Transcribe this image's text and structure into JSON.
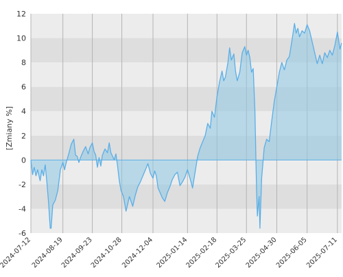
{
  "chart_data": {
    "type": "area",
    "ylabel": "[Zmiany %]",
    "ylim": [
      -6,
      12
    ],
    "yticks": [
      -6,
      -4,
      -2,
      0,
      2,
      4,
      6,
      8,
      10,
      12
    ],
    "xlim": [
      "2024-07-12",
      "2025-07-16"
    ],
    "xticks": [
      "2024-07-12",
      "2024-08-19",
      "2024-09-23",
      "2024-10-28",
      "2024-12-04",
      "2025-01-14",
      "2025-02-18",
      "2025-03-25",
      "2025-04-30",
      "2025-06-05",
      "2025-07-11"
    ],
    "grid": true,
    "colors": {
      "band_light": "#ececec",
      "band_dark": "#dedede",
      "vgrid": "#b4b4b4",
      "line": "#5aaee6",
      "area_positive": "#8ec8e6",
      "area_negative": "#8ecfe6",
      "zero_line": "#5aaee6"
    },
    "series": [
      {
        "points": [
          [
            "2024-07-12",
            0.0
          ],
          [
            "2024-07-14",
            -1.2
          ],
          [
            "2024-07-16",
            -0.6
          ],
          [
            "2024-07-18",
            -1.3
          ],
          [
            "2024-07-20",
            -0.8
          ],
          [
            "2024-07-23",
            -1.7
          ],
          [
            "2024-07-25",
            -0.8
          ],
          [
            "2024-07-27",
            -1.3
          ],
          [
            "2024-07-29",
            -0.4
          ],
          [
            "2024-07-31",
            -1.8
          ],
          [
            "2024-08-02",
            -3.5
          ],
          [
            "2024-08-04",
            -5.6
          ],
          [
            "2024-08-05",
            -5.6
          ],
          [
            "2024-08-07",
            -3.7
          ],
          [
            "2024-08-10",
            -3.3
          ],
          [
            "2024-08-13",
            -2.5
          ],
          [
            "2024-08-16",
            -0.8
          ],
          [
            "2024-08-19",
            -0.2
          ],
          [
            "2024-08-21",
            -0.8
          ],
          [
            "2024-08-23",
            -0.2
          ],
          [
            "2024-08-26",
            0.5
          ],
          [
            "2024-08-29",
            1.3
          ],
          [
            "2024-09-01",
            1.7
          ],
          [
            "2024-09-03",
            0.4
          ],
          [
            "2024-09-05",
            0.3
          ],
          [
            "2024-09-07",
            -0.2
          ],
          [
            "2024-09-09",
            0.2
          ],
          [
            "2024-09-12",
            0.7
          ],
          [
            "2024-09-15",
            1.1
          ],
          [
            "2024-09-18",
            0.5
          ],
          [
            "2024-09-20",
            1.0
          ],
          [
            "2024-09-23",
            1.4
          ],
          [
            "2024-09-25",
            0.7
          ],
          [
            "2024-09-27",
            0.4
          ],
          [
            "2024-09-29",
            -0.6
          ],
          [
            "2024-10-01",
            0.2
          ],
          [
            "2024-10-03",
            -0.5
          ],
          [
            "2024-10-05",
            0.4
          ],
          [
            "2024-10-08",
            0.9
          ],
          [
            "2024-10-11",
            0.6
          ],
          [
            "2024-10-13",
            1.4
          ],
          [
            "2024-10-15",
            0.6
          ],
          [
            "2024-10-17",
            0.3
          ],
          [
            "2024-10-19",
            0.0
          ],
          [
            "2024-10-21",
            0.5
          ],
          [
            "2024-10-23",
            -0.5
          ],
          [
            "2024-10-25",
            -1.7
          ],
          [
            "2024-10-27",
            -2.5
          ],
          [
            "2024-10-30",
            -3.0
          ],
          [
            "2024-11-02",
            -4.2
          ],
          [
            "2024-11-04",
            -3.6
          ],
          [
            "2024-11-06",
            -3.0
          ],
          [
            "2024-11-08",
            -3.4
          ],
          [
            "2024-11-10",
            -3.8
          ],
          [
            "2024-11-13",
            -2.9
          ],
          [
            "2024-11-16",
            -2.2
          ],
          [
            "2024-11-19",
            -1.8
          ],
          [
            "2024-11-22",
            -1.3
          ],
          [
            "2024-11-25",
            -0.8
          ],
          [
            "2024-11-28",
            -0.3
          ],
          [
            "2024-12-01",
            -1.1
          ],
          [
            "2024-12-04",
            -1.5
          ],
          [
            "2024-12-06",
            -0.9
          ],
          [
            "2024-12-08",
            -1.3
          ],
          [
            "2024-12-10",
            -2.3
          ],
          [
            "2024-12-12",
            -2.6
          ],
          [
            "2024-12-15",
            -3.1
          ],
          [
            "2024-12-18",
            -3.4
          ],
          [
            "2024-12-21",
            -2.7
          ],
          [
            "2024-12-24",
            -2.2
          ],
          [
            "2024-12-27",
            -1.6
          ],
          [
            "2024-12-30",
            -1.2
          ],
          [
            "2025-01-02",
            -1.0
          ],
          [
            "2025-01-05",
            -2.1
          ],
          [
            "2025-01-08",
            -1.8
          ],
          [
            "2025-01-11",
            -1.4
          ],
          [
            "2025-01-14",
            -0.8
          ],
          [
            "2025-01-17",
            -1.5
          ],
          [
            "2025-01-20",
            -2.3
          ],
          [
            "2025-01-23",
            -1.0
          ],
          [
            "2025-01-26",
            0.3
          ],
          [
            "2025-01-29",
            1.0
          ],
          [
            "2025-02-01",
            1.5
          ],
          [
            "2025-02-04",
            2.0
          ],
          [
            "2025-02-07",
            3.0
          ],
          [
            "2025-02-10",
            2.6
          ],
          [
            "2025-02-12",
            4.0
          ],
          [
            "2025-02-15",
            3.5
          ],
          [
            "2025-02-18",
            5.2
          ],
          [
            "2025-02-21",
            6.4
          ],
          [
            "2025-02-24",
            7.3
          ],
          [
            "2025-02-26",
            6.5
          ],
          [
            "2025-02-28",
            6.8
          ],
          [
            "2025-03-03",
            8.0
          ],
          [
            "2025-03-05",
            9.2
          ],
          [
            "2025-03-07",
            8.2
          ],
          [
            "2025-03-10",
            8.7
          ],
          [
            "2025-03-12",
            7.3
          ],
          [
            "2025-03-14",
            6.5
          ],
          [
            "2025-03-17",
            7.2
          ],
          [
            "2025-03-20",
            8.8
          ],
          [
            "2025-03-23",
            9.3
          ],
          [
            "2025-03-25",
            8.6
          ],
          [
            "2025-03-27",
            9.0
          ],
          [
            "2025-03-29",
            8.4
          ],
          [
            "2025-03-31",
            7.2
          ],
          [
            "2025-04-02",
            7.5
          ],
          [
            "2025-04-04",
            4.0
          ],
          [
            "2025-04-06",
            -2.5
          ],
          [
            "2025-04-07",
            -4.6
          ],
          [
            "2025-04-09",
            -3.0
          ],
          [
            "2025-04-10",
            -5.6
          ],
          [
            "2025-04-12",
            -1.5
          ],
          [
            "2025-04-15",
            1.0
          ],
          [
            "2025-04-18",
            1.7
          ],
          [
            "2025-04-21",
            1.5
          ],
          [
            "2025-04-24",
            3.2
          ],
          [
            "2025-04-27",
            4.8
          ],
          [
            "2025-04-30",
            6.0
          ],
          [
            "2025-05-03",
            7.2
          ],
          [
            "2025-05-06",
            8.0
          ],
          [
            "2025-05-09",
            7.4
          ],
          [
            "2025-05-12",
            8.2
          ],
          [
            "2025-05-15",
            8.5
          ],
          [
            "2025-05-18",
            9.8
          ],
          [
            "2025-05-21",
            11.2
          ],
          [
            "2025-05-23",
            10.4
          ],
          [
            "2025-05-25",
            10.8
          ],
          [
            "2025-05-27",
            10.1
          ],
          [
            "2025-05-30",
            10.6
          ],
          [
            "2025-06-02",
            10.4
          ],
          [
            "2025-06-05",
            11.1
          ],
          [
            "2025-06-08",
            10.6
          ],
          [
            "2025-06-11",
            9.7
          ],
          [
            "2025-06-14",
            8.8
          ],
          [
            "2025-06-17",
            7.9
          ],
          [
            "2025-06-20",
            8.6
          ],
          [
            "2025-06-23",
            7.9
          ],
          [
            "2025-06-26",
            8.8
          ],
          [
            "2025-06-29",
            8.4
          ],
          [
            "2025-07-02",
            9.0
          ],
          [
            "2025-07-05",
            8.6
          ],
          [
            "2025-07-08",
            9.4
          ],
          [
            "2025-07-11",
            10.5
          ],
          [
            "2025-07-14",
            9.1
          ],
          [
            "2025-07-16",
            9.6
          ]
        ]
      }
    ]
  }
}
